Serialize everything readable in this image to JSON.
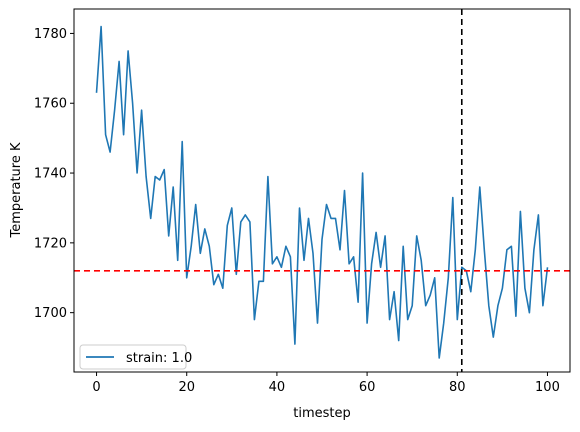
{
  "chart_data": {
    "type": "line",
    "xlabel": "timestep",
    "ylabel": "Temperature K",
    "xlim": [
      -5,
      105
    ],
    "ylim": [
      1683,
      1787
    ],
    "xticks": [
      0,
      20,
      40,
      60,
      80,
      100
    ],
    "yticks": [
      1700,
      1720,
      1740,
      1760,
      1780
    ],
    "grid": false,
    "legend": {
      "location": "lower-left"
    },
    "series": [
      {
        "name": "strain: 1.0",
        "color": "#1f77b4",
        "x": [
          0,
          1,
          2,
          3,
          4,
          5,
          6,
          7,
          8,
          9,
          10,
          11,
          12,
          13,
          14,
          15,
          16,
          17,
          18,
          19,
          20,
          21,
          22,
          23,
          24,
          25,
          26,
          27,
          28,
          29,
          30,
          31,
          32,
          33,
          34,
          35,
          36,
          37,
          38,
          39,
          40,
          41,
          42,
          43,
          44,
          45,
          46,
          47,
          48,
          49,
          50,
          51,
          52,
          53,
          54,
          55,
          56,
          57,
          58,
          59,
          60,
          61,
          62,
          63,
          64,
          65,
          66,
          67,
          68,
          69,
          70,
          71,
          72,
          73,
          74,
          75,
          76,
          77,
          78,
          79,
          80,
          81,
          82,
          83,
          84,
          85,
          86,
          87,
          88,
          89,
          90,
          91,
          92,
          93,
          94,
          95,
          96,
          97,
          98,
          99,
          100
        ],
        "y": [
          1763,
          1782,
          1751,
          1746,
          1758,
          1772,
          1751,
          1775,
          1760,
          1740,
          1758,
          1739,
          1727,
          1739,
          1738,
          1741,
          1722,
          1736,
          1715,
          1749,
          1710,
          1719,
          1731,
          1717,
          1724,
          1719,
          1708,
          1711,
          1707,
          1725,
          1730,
          1711,
          1726,
          1728,
          1726,
          1698,
          1709,
          1709,
          1739,
          1714,
          1716,
          1713,
          1719,
          1716,
          1691,
          1730,
          1715,
          1727,
          1717,
          1697,
          1721,
          1731,
          1727,
          1727,
          1718,
          1735,
          1714,
          1716,
          1703,
          1740,
          1697,
          1714,
          1723,
          1713,
          1722,
          1698,
          1706,
          1692,
          1719,
          1698,
          1702,
          1722,
          1715,
          1702,
          1705,
          1710,
          1687,
          1697,
          1710,
          1733,
          1698,
          1713,
          1712,
          1706,
          1718,
          1736,
          1718,
          1702,
          1693,
          1702,
          1707,
          1718,
          1719,
          1699,
          1729,
          1707,
          1700,
          1718,
          1728,
          1702,
          1713
        ]
      }
    ],
    "reference_lines": [
      {
        "orientation": "horizontal",
        "value": 1712,
        "color": "#ff0000",
        "style": "dashed"
      },
      {
        "orientation": "vertical",
        "value": 81,
        "color": "#000000",
        "style": "dashed"
      }
    ]
  }
}
